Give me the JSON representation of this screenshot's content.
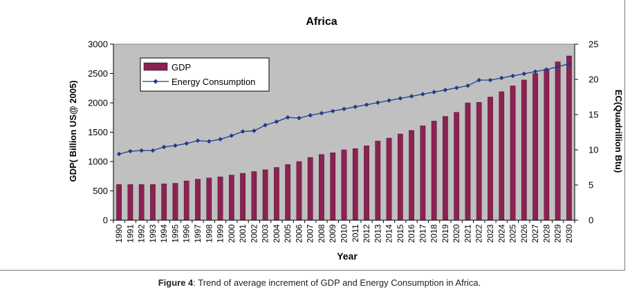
{
  "chart_data": {
    "type": "bar+line",
    "title": "Africa",
    "xlabel": "Year",
    "ylabel": "GDP( Billion US@ 2005)",
    "y2label": "EC(Quadrillion Btu)",
    "ylim": [
      0,
      3000
    ],
    "y2lim": [
      0,
      25
    ],
    "yticks": [
      0,
      500,
      1000,
      1500,
      2000,
      2500,
      3000
    ],
    "y2ticks": [
      0,
      5,
      10,
      15,
      20,
      25
    ],
    "plot_background": "#c0c0c0",
    "grid": false,
    "legend_position": "top-left",
    "categories": [
      "1990",
      "1991",
      "1992",
      "1993",
      "1994",
      "1995",
      "1996",
      "1997",
      "1998",
      "1999",
      "2000",
      "2001",
      "2002",
      "2003",
      "2004",
      "2005",
      "2006",
      "2007",
      "2008",
      "2009",
      "2010",
      "2011",
      "2012",
      "2013",
      "2014",
      "2015",
      "2016",
      "2017",
      "2018",
      "2019",
      "2020",
      "2021",
      "2022",
      "2023",
      "2024",
      "2025",
      "2026",
      "2027",
      "2028",
      "2029",
      "2030"
    ],
    "series": [
      {
        "name": "GDP",
        "type": "bar",
        "axis": "left",
        "color": "#8b2252",
        "values": [
          610,
          610,
          610,
          610,
          620,
          630,
          670,
          700,
          720,
          740,
          770,
          800,
          830,
          860,
          900,
          950,
          1000,
          1070,
          1120,
          1150,
          1200,
          1220,
          1270,
          1350,
          1400,
          1470,
          1530,
          1610,
          1690,
          1770,
          1840,
          2000,
          2010,
          2100,
          2190,
          2290,
          2390,
          2500,
          2580,
          2700,
          2800
        ]
      },
      {
        "name": "Energy Consumption",
        "type": "line",
        "axis": "right",
        "color": "#1f3c8c",
        "values": [
          9.4,
          9.8,
          9.9,
          9.9,
          10.4,
          10.6,
          10.9,
          11.3,
          11.2,
          11.5,
          12.0,
          12.6,
          12.7,
          13.5,
          14.0,
          14.6,
          14.5,
          14.9,
          15.2,
          15.5,
          15.8,
          16.1,
          16.4,
          16.7,
          17.0,
          17.3,
          17.6,
          17.9,
          18.2,
          18.5,
          18.8,
          19.1,
          19.9,
          19.9,
          20.2,
          20.5,
          20.8,
          21.1,
          21.4,
          21.8,
          22.2
        ]
      }
    ]
  },
  "caption": {
    "label": "Figure 4",
    "text": ": Trend of average increment of GDP and Energy Consumption in Africa."
  }
}
